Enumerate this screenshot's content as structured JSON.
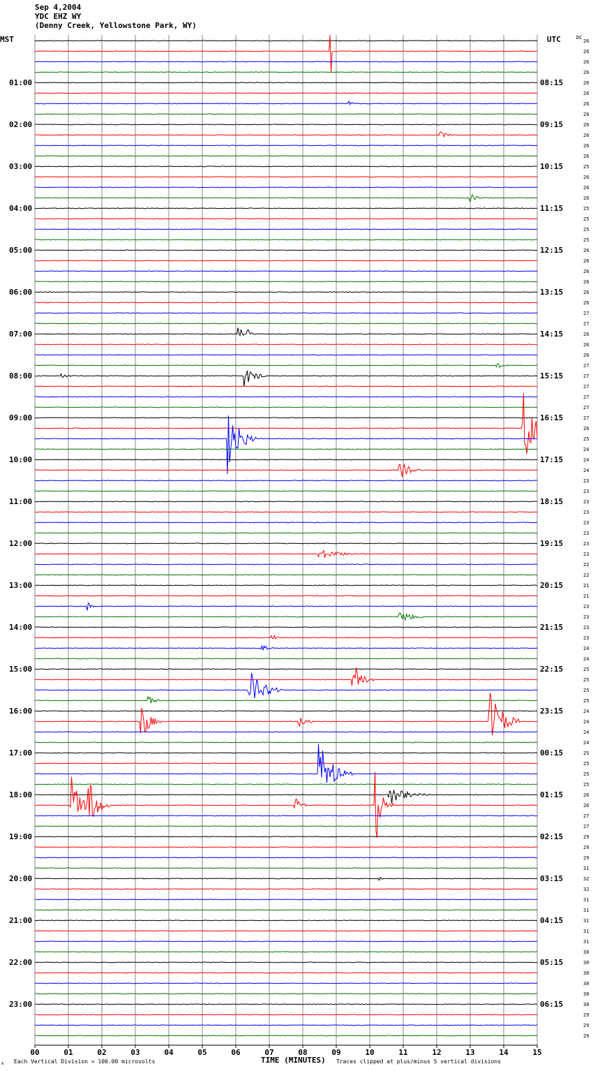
{
  "header": {
    "date": "Sep 4,2004",
    "station": "YDC EHZ WY",
    "location": "(Denny Creek, Yellowstone Park, WY)"
  },
  "left_tz": "MST",
  "right_tz": "UTC",
  "dc_label": "DC",
  "footer": {
    "scale_note": "Each Vertical Division =  100.00 microvolts",
    "clip_note": "Traces clipped at plus/minus 5 vertical divisions",
    "corner_mark": "A"
  },
  "colors": {
    "trace_cycle": [
      "#000000",
      "#ff0000",
      "#0000ff",
      "#007700"
    ],
    "grid": "#888888"
  },
  "chart_data": {
    "type": "line",
    "title": "Sep 4,2004 YDC EHZ WY (Denny Creek, Yellowstone Park, WY)",
    "xlabel": "TIME (MINUTES)",
    "xlim": [
      0,
      15
    ],
    "x_ticks": [
      "00",
      "01",
      "02",
      "03",
      "04",
      "05",
      "06",
      "07",
      "08",
      "09",
      "10",
      "11",
      "12",
      "13",
      "14",
      "15"
    ],
    "left_hour_labels": [
      "01:00",
      "02:00",
      "03:00",
      "04:00",
      "05:00",
      "06:00",
      "07:00",
      "08:00",
      "09:00",
      "10:00",
      "11:00",
      "12:00",
      "13:00",
      "14:00",
      "15:00",
      "16:00",
      "17:00",
      "18:00",
      "19:00",
      "20:00",
      "21:00",
      "22:00",
      "23:00"
    ],
    "right_hour_labels": [
      "08:15",
      "09:15",
      "10:15",
      "11:15",
      "12:15",
      "13:15",
      "14:15",
      "15:15",
      "16:15",
      "17:15",
      "18:15",
      "19:15",
      "20:15",
      "21:15",
      "22:15",
      "23:15",
      "00:15",
      "01:15",
      "02:15",
      "03:15",
      "04:15",
      "05:15",
      "06:15"
    ],
    "trace_minutes": 15,
    "trace_count": 96,
    "dc_values": [
      26,
      26,
      26,
      26,
      26,
      26,
      26,
      26,
      26,
      26,
      26,
      26,
      25,
      26,
      26,
      26,
      25,
      25,
      25,
      25,
      26,
      26,
      26,
      26,
      26,
      26,
      27,
      27,
      26,
      26,
      26,
      27,
      27,
      27,
      27,
      27,
      27,
      26,
      25,
      24,
      24,
      24,
      23,
      23,
      23,
      23,
      23,
      23,
      23,
      23,
      22,
      22,
      21,
      21,
      23,
      23,
      23,
      23,
      24,
      24,
      25,
      25,
      25,
      25,
      24,
      24,
      24,
      24,
      25,
      25,
      25,
      25,
      26,
      26,
      27,
      27,
      29,
      29,
      29,
      31,
      32,
      32,
      31,
      31,
      31,
      31,
      31,
      30,
      30,
      30,
      30,
      30,
      30,
      29,
      29,
      29
    ],
    "events": [
      {
        "trace": 1,
        "minute": 8.85,
        "amplitude": 3.0,
        "duration": 0.05
      },
      {
        "trace": 6,
        "minute": 9.4,
        "amplitude": 0.5,
        "duration": 0.3
      },
      {
        "trace": 9,
        "minute": 12.1,
        "amplitude": 0.4,
        "duration": 0.5
      },
      {
        "trace": 15,
        "minute": 13.0,
        "amplitude": 0.4,
        "duration": 0.6
      },
      {
        "trace": 28,
        "minute": 6.1,
        "amplitude": 0.8,
        "duration": 0.3
      },
      {
        "trace": 28,
        "minute": 6.35,
        "amplitude": 0.6,
        "duration": 0.2
      },
      {
        "trace": 31,
        "minute": 13.8,
        "amplitude": 0.5,
        "duration": 0.3
      },
      {
        "trace": 32,
        "minute": 0.8,
        "amplitude": 0.5,
        "duration": 0.4
      },
      {
        "trace": 32,
        "minute": 6.3,
        "amplitude": 1.0,
        "duration": 0.7
      },
      {
        "trace": 37,
        "minute": 14.6,
        "amplitude": 3.8,
        "duration": 0.8
      },
      {
        "trace": 38,
        "minute": 5.8,
        "amplitude": 3.5,
        "duration": 0.8
      },
      {
        "trace": 41,
        "minute": 10.9,
        "amplitude": 1.0,
        "duration": 0.7
      },
      {
        "trace": 49,
        "minute": 8.5,
        "amplitude": 0.5,
        "duration": 1.5
      },
      {
        "trace": 54,
        "minute": 1.6,
        "amplitude": 0.5,
        "duration": 0.3
      },
      {
        "trace": 55,
        "minute": 10.9,
        "amplitude": 0.8,
        "duration": 0.8
      },
      {
        "trace": 57,
        "minute": 7.1,
        "amplitude": 0.4,
        "duration": 0.3
      },
      {
        "trace": 58,
        "minute": 6.8,
        "amplitude": 0.5,
        "duration": 0.3
      },
      {
        "trace": 61,
        "minute": 9.5,
        "amplitude": 2.0,
        "duration": 0.6
      },
      {
        "trace": 62,
        "minute": 6.4,
        "amplitude": 2.0,
        "duration": 1.0
      },
      {
        "trace": 63,
        "minute": 3.4,
        "amplitude": 0.6,
        "duration": 0.4
      },
      {
        "trace": 65,
        "minute": 3.2,
        "amplitude": 1.8,
        "duration": 0.6
      },
      {
        "trace": 65,
        "minute": 7.9,
        "amplitude": 0.7,
        "duration": 0.5
      },
      {
        "trace": 65,
        "minute": 13.6,
        "amplitude": 3.0,
        "duration": 0.9
      },
      {
        "trace": 70,
        "minute": 8.5,
        "amplitude": 3.0,
        "duration": 1.0
      },
      {
        "trace": 72,
        "minute": 10.6,
        "amplitude": 1.0,
        "duration": 1.2
      },
      {
        "trace": 73,
        "minute": 1.1,
        "amplitude": 3.0,
        "duration": 0.6
      },
      {
        "trace": 73,
        "minute": 1.55,
        "amplitude": 3.0,
        "duration": 0.7
      },
      {
        "trace": 73,
        "minute": 7.8,
        "amplitude": 0.8,
        "duration": 0.4
      },
      {
        "trace": 73,
        "minute": 10.2,
        "amplitude": 3.5,
        "duration": 0.5
      },
      {
        "trace": 80,
        "minute": 10.3,
        "amplitude": 0.3,
        "duration": 0.2
      }
    ]
  }
}
